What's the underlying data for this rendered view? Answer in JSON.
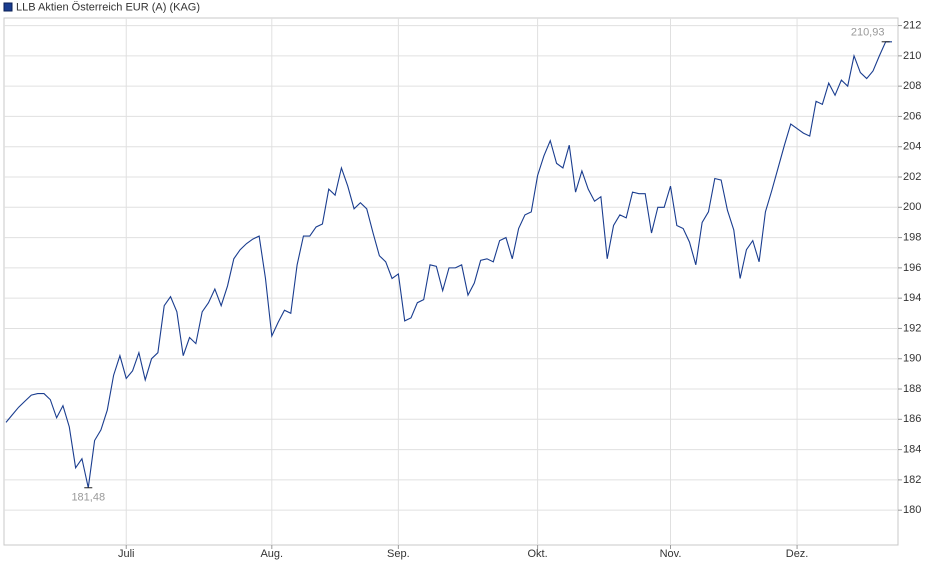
{
  "chart_data": {
    "type": "line",
    "series": [
      {
        "name": "LLB Aktien Österreich EUR (A) (KAG)",
        "color": "#1a3d8f",
        "values": [
          185.8,
          186.3,
          186.8,
          187.2,
          187.6,
          187.7,
          187.7,
          187.3,
          186.1,
          186.9,
          185.5,
          182.8,
          183.4,
          181.48,
          184.6,
          185.3,
          186.6,
          188.9,
          190.2,
          188.7,
          189.2,
          190.4,
          188.6,
          190.0,
          190.4,
          193.5,
          194.1,
          193.1,
          190.2,
          191.4,
          191.0,
          193.1,
          193.7,
          194.6,
          193.5,
          194.8,
          196.6,
          197.2,
          197.6,
          197.9,
          198.1,
          195.3,
          191.5,
          192.4,
          193.2,
          193.0,
          196.2,
          198.1,
          198.1,
          198.7,
          198.9,
          201.2,
          200.8,
          202.6,
          201.4,
          199.9,
          200.3,
          199.9,
          198.3,
          196.8,
          196.4,
          195.3,
          195.6,
          192.5,
          192.7,
          193.7,
          193.9,
          196.2,
          196.1,
          194.5,
          196.0,
          196.0,
          196.2,
          194.2,
          195.0,
          196.5,
          196.6,
          196.4,
          197.8,
          198.0,
          196.6,
          198.6,
          199.5,
          199.7,
          202.1,
          203.4,
          204.4,
          202.9,
          202.6,
          204.1,
          201.0,
          202.4,
          201.2,
          200.4,
          200.7,
          196.6,
          198.8,
          199.5,
          199.3,
          201.0,
          200.9,
          200.9,
          198.3,
          200.0,
          200.0,
          201.4,
          198.8,
          198.6,
          197.7,
          196.2,
          199.0,
          199.7,
          201.9,
          201.8,
          199.8,
          198.5,
          195.3,
          197.2,
          197.8,
          196.4,
          199.7,
          201.1,
          202.6,
          204.1,
          205.5,
          205.2,
          204.9,
          204.7,
          207.0,
          206.8,
          208.2,
          207.4,
          208.4,
          208.0,
          210.0,
          208.9,
          208.5,
          209.0,
          210.0,
          210.93,
          210.93
        ]
      }
    ],
    "categories": [
      null,
      null,
      null,
      null,
      null,
      null,
      null,
      null,
      null,
      null,
      null,
      null,
      null,
      null,
      null,
      null,
      null,
      null,
      null,
      "Juli",
      null,
      null,
      null,
      null,
      null,
      null,
      null,
      null,
      null,
      null,
      null,
      null,
      null,
      null,
      null,
      null,
      null,
      null,
      null,
      null,
      null,
      null,
      "Aug.",
      null,
      null,
      null,
      null,
      null,
      null,
      null,
      null,
      null,
      null,
      null,
      null,
      null,
      null,
      null,
      null,
      null,
      null,
      null,
      "Sep.",
      null,
      null,
      null,
      null,
      null,
      null,
      null,
      null,
      null,
      null,
      null,
      null,
      null,
      null,
      null,
      null,
      null,
      null,
      null,
      null,
      null,
      "Okt.",
      null,
      null,
      null,
      null,
      null,
      null,
      null,
      null,
      null,
      null,
      null,
      null,
      null,
      null,
      null,
      null,
      null,
      null,
      null,
      null,
      "Nov.",
      null,
      null,
      null,
      null,
      null,
      null,
      null,
      null,
      null,
      null,
      null,
      null,
      null,
      null,
      null,
      null,
      null,
      null,
      null,
      "Dez.",
      null,
      null,
      null,
      null,
      null,
      null,
      null,
      null,
      null,
      null,
      null,
      null,
      null,
      null,
      null
    ],
    "annotations": [
      {
        "text": "181,48",
        "value": 181.48
      },
      {
        "text": "210,93",
        "value": 210.93
      }
    ],
    "ylim": [
      177.7,
      212.5
    ],
    "yticks": [
      180,
      182,
      184,
      186,
      188,
      190,
      192,
      194,
      196,
      198,
      200,
      202,
      204,
      206,
      208,
      210,
      212
    ],
    "grid": true,
    "legend": "top-left"
  }
}
